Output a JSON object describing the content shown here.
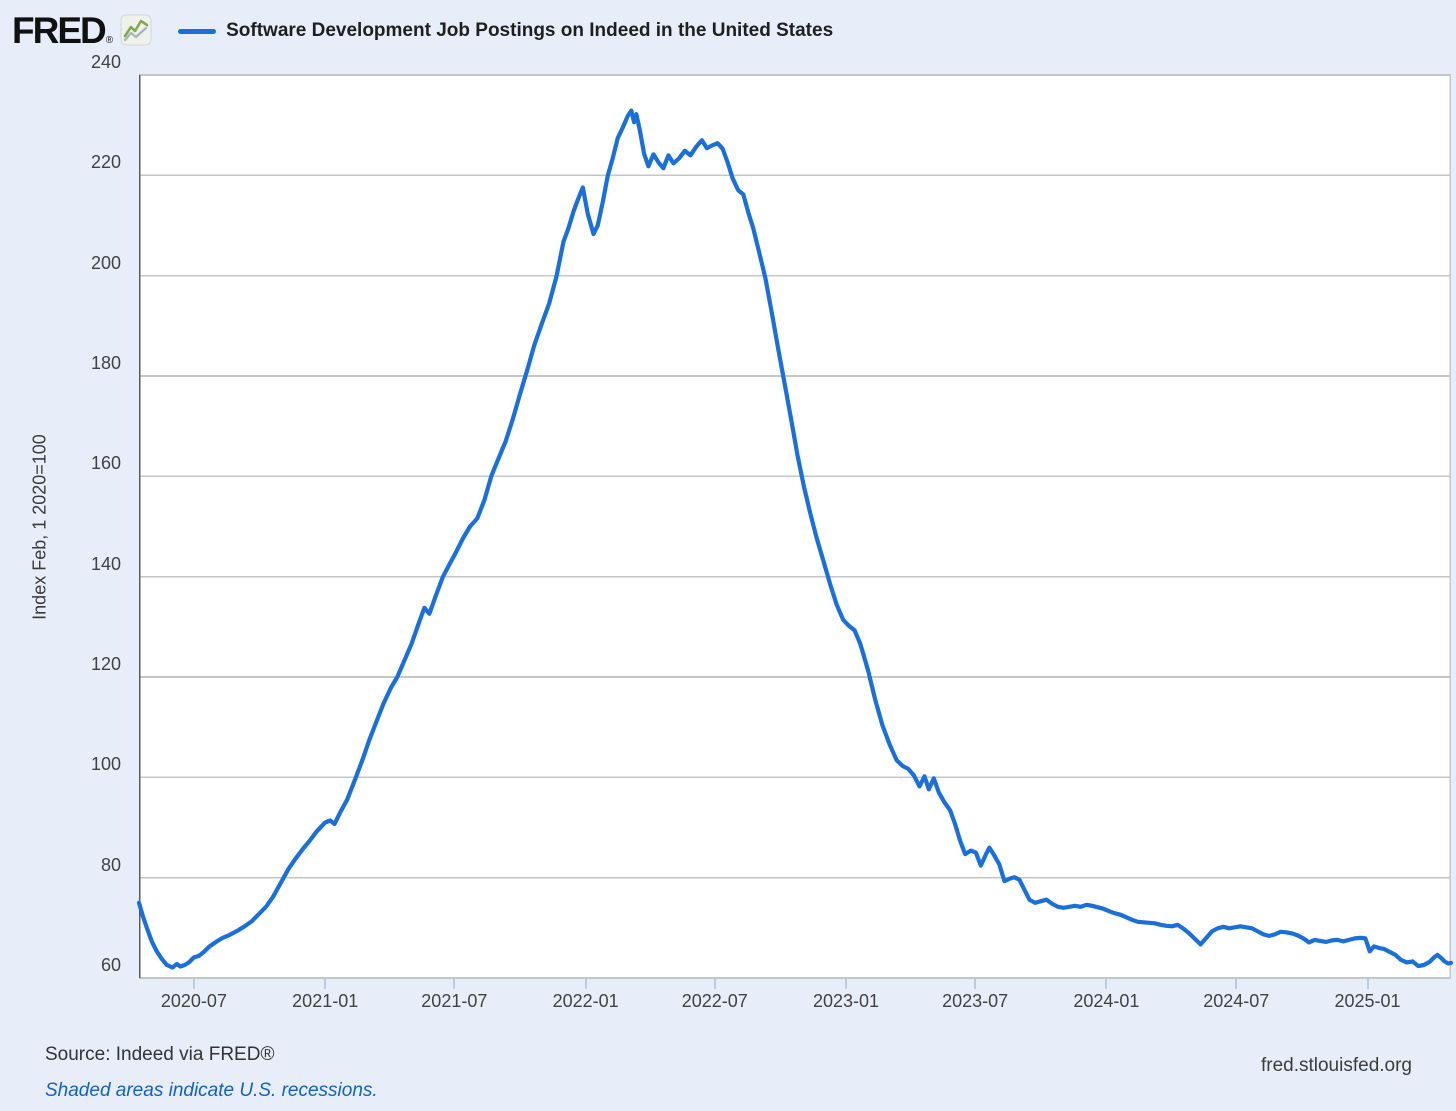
{
  "header": {
    "logo_text": "FRED",
    "registered_mark": "®",
    "legend_label": "Software Development Job Postings on Indeed in the United States"
  },
  "y_axis": {
    "label": "Index Feb, 1 2020=100"
  },
  "footer": {
    "source": "Source: Indeed via FRED®",
    "recession_note": "Shaded areas indicate U.S. recessions.",
    "site": "fred.stlouisfed.org"
  },
  "colors": {
    "background": "#e7eefa",
    "plot_background": "#ffffff",
    "line": "#1a6fdb",
    "grid": "#c6c6c6",
    "axis": "#5a5a5a",
    "tick": "#bcc9e2",
    "link": "#1261c4",
    "text": "#333333"
  },
  "chart_data": {
    "type": "line",
    "title": "Software Development Job Postings on Indeed in the United States",
    "xlabel": "",
    "ylabel": "Index Feb, 1 2020=100",
    "ylim": [
      60,
      240
    ],
    "y_ticks": [
      240,
      220,
      200,
      180,
      160,
      140,
      120,
      100,
      80,
      60
    ],
    "x_domain": [
      "2020-04-15",
      "2025-04-28"
    ],
    "x_ticks": [
      {
        "label": "2020-07",
        "date": "2020-07-01"
      },
      {
        "label": "2021-01",
        "date": "2021-01-01"
      },
      {
        "label": "2021-07",
        "date": "2021-07-01"
      },
      {
        "label": "2022-01",
        "date": "2022-01-01"
      },
      {
        "label": "2022-07",
        "date": "2022-07-01"
      },
      {
        "label": "2023-01",
        "date": "2023-01-01"
      },
      {
        "label": "2023-07",
        "date": "2023-07-01"
      },
      {
        "label": "2024-01",
        "date": "2024-01-01"
      },
      {
        "label": "2024-07",
        "date": "2024-07-01"
      },
      {
        "label": "2025-01",
        "date": "2025-01-01"
      }
    ],
    "grid": true,
    "legend_position": "top-left",
    "series": [
      {
        "name": "Software Development Job Postings on Indeed in the United States",
        "points": [
          [
            "2020-04-15",
            75.0
          ],
          [
            "2020-04-20",
            72.5
          ],
          [
            "2020-04-26",
            70.0
          ],
          [
            "2020-05-03",
            67.3
          ],
          [
            "2020-05-10",
            65.3
          ],
          [
            "2020-05-17",
            63.8
          ],
          [
            "2020-05-24",
            62.6
          ],
          [
            "2020-06-01",
            62.1
          ],
          [
            "2020-06-07",
            62.8
          ],
          [
            "2020-06-12",
            62.3
          ],
          [
            "2020-06-18",
            62.6
          ],
          [
            "2020-06-24",
            63.1
          ],
          [
            "2020-07-01",
            64.1
          ],
          [
            "2020-07-08",
            64.4
          ],
          [
            "2020-07-15",
            65.2
          ],
          [
            "2020-07-22",
            66.2
          ],
          [
            "2020-08-01",
            67.2
          ],
          [
            "2020-08-10",
            68.0
          ],
          [
            "2020-08-20",
            68.6
          ],
          [
            "2020-09-01",
            69.5
          ],
          [
            "2020-09-10",
            70.3
          ],
          [
            "2020-09-20",
            71.3
          ],
          [
            "2020-10-01",
            72.9
          ],
          [
            "2020-10-10",
            74.2
          ],
          [
            "2020-10-20",
            76.2
          ],
          [
            "2020-11-01",
            79.3
          ],
          [
            "2020-11-10",
            81.6
          ],
          [
            "2020-11-20",
            83.7
          ],
          [
            "2020-12-01",
            85.8
          ],
          [
            "2020-12-10",
            87.3
          ],
          [
            "2020-12-20",
            89.2
          ],
          [
            "2021-01-01",
            91.0
          ],
          [
            "2021-01-08",
            91.4
          ],
          [
            "2021-01-14",
            90.7
          ],
          [
            "2021-01-22",
            93.0
          ],
          [
            "2021-02-01",
            95.6
          ],
          [
            "2021-02-13",
            100.0
          ],
          [
            "2021-02-22",
            103.4
          ],
          [
            "2021-03-04",
            107.5
          ],
          [
            "2021-03-14",
            111.2
          ],
          [
            "2021-03-24",
            114.8
          ],
          [
            "2021-04-03",
            117.8
          ],
          [
            "2021-04-12",
            120.0
          ],
          [
            "2021-04-22",
            123.3
          ],
          [
            "2021-05-02",
            126.6
          ],
          [
            "2021-05-12",
            130.7
          ],
          [
            "2021-05-20",
            133.8
          ],
          [
            "2021-05-27",
            132.6
          ],
          [
            "2021-06-05",
            136.2
          ],
          [
            "2021-06-15",
            140.0
          ],
          [
            "2021-06-24",
            142.4
          ],
          [
            "2021-07-03",
            144.8
          ],
          [
            "2021-07-13",
            147.6
          ],
          [
            "2021-07-23",
            150.0
          ],
          [
            "2021-08-02",
            151.6
          ],
          [
            "2021-08-12",
            155.2
          ],
          [
            "2021-08-22",
            160.1
          ],
          [
            "2021-09-01",
            163.6
          ],
          [
            "2021-09-11",
            167.0
          ],
          [
            "2021-09-21",
            171.4
          ],
          [
            "2021-10-01",
            176.4
          ],
          [
            "2021-10-11",
            181.1
          ],
          [
            "2021-10-21",
            186.1
          ],
          [
            "2021-11-01",
            190.6
          ],
          [
            "2021-11-11",
            194.5
          ],
          [
            "2021-11-21",
            199.8
          ],
          [
            "2021-12-01",
            206.8
          ],
          [
            "2021-12-08",
            209.5
          ],
          [
            "2021-12-15",
            212.8
          ],
          [
            "2021-12-21",
            215.1
          ],
          [
            "2021-12-28",
            217.6
          ],
          [
            "2022-01-04",
            212.4
          ],
          [
            "2022-01-12",
            208.3
          ],
          [
            "2022-01-18",
            210.0
          ],
          [
            "2022-01-25",
            214.6
          ],
          [
            "2022-02-01",
            219.9
          ],
          [
            "2022-02-08",
            223.4
          ],
          [
            "2022-02-15",
            227.4
          ],
          [
            "2022-02-22",
            229.5
          ],
          [
            "2022-03-01",
            231.8
          ],
          [
            "2022-03-06",
            232.9
          ],
          [
            "2022-03-10",
            230.6
          ],
          [
            "2022-03-13",
            232.2
          ],
          [
            "2022-03-18",
            229.0
          ],
          [
            "2022-03-24",
            224.3
          ],
          [
            "2022-03-30",
            221.8
          ],
          [
            "2022-04-06",
            224.2
          ],
          [
            "2022-04-13",
            222.6
          ],
          [
            "2022-04-20",
            221.4
          ],
          [
            "2022-04-27",
            224.0
          ],
          [
            "2022-05-04",
            222.4
          ],
          [
            "2022-05-12",
            223.4
          ],
          [
            "2022-05-20",
            224.9
          ],
          [
            "2022-05-28",
            224.0
          ],
          [
            "2022-06-05",
            225.7
          ],
          [
            "2022-06-13",
            227.0
          ],
          [
            "2022-06-20",
            225.4
          ],
          [
            "2022-06-28",
            226.0
          ],
          [
            "2022-07-05",
            226.4
          ],
          [
            "2022-07-12",
            225.3
          ],
          [
            "2022-07-19",
            222.6
          ],
          [
            "2022-07-26",
            219.4
          ],
          [
            "2022-08-03",
            217.0
          ],
          [
            "2022-08-10",
            216.2
          ],
          [
            "2022-08-17",
            212.6
          ],
          [
            "2022-08-24",
            209.4
          ],
          [
            "2022-09-01",
            204.8
          ],
          [
            "2022-09-10",
            199.5
          ],
          [
            "2022-09-19",
            192.6
          ],
          [
            "2022-09-28",
            185.4
          ],
          [
            "2022-10-07",
            178.4
          ],
          [
            "2022-10-16",
            171.4
          ],
          [
            "2022-10-25",
            164.2
          ],
          [
            "2022-11-03",
            158.0
          ],
          [
            "2022-11-12",
            152.6
          ],
          [
            "2022-11-21",
            147.6
          ],
          [
            "2022-12-01",
            142.8
          ],
          [
            "2022-12-10",
            138.4
          ],
          [
            "2022-12-19",
            134.4
          ],
          [
            "2022-12-28",
            131.4
          ],
          [
            "2023-01-05",
            130.2
          ],
          [
            "2023-01-13",
            129.3
          ],
          [
            "2023-01-21",
            126.6
          ],
          [
            "2023-02-01",
            121.3
          ],
          [
            "2023-02-11",
            115.4
          ],
          [
            "2023-02-21",
            110.4
          ],
          [
            "2023-03-03",
            106.6
          ],
          [
            "2023-03-13",
            103.4
          ],
          [
            "2023-03-21",
            102.3
          ],
          [
            "2023-03-29",
            101.7
          ],
          [
            "2023-04-06",
            100.4
          ],
          [
            "2023-04-14",
            98.2
          ],
          [
            "2023-04-21",
            100.2
          ],
          [
            "2023-04-27",
            97.6
          ],
          [
            "2023-05-04",
            99.8
          ],
          [
            "2023-05-11",
            97.0
          ],
          [
            "2023-05-19",
            95.0
          ],
          [
            "2023-05-27",
            93.4
          ],
          [
            "2023-06-03",
            90.6
          ],
          [
            "2023-06-10",
            87.3
          ],
          [
            "2023-06-17",
            84.7
          ],
          [
            "2023-06-25",
            85.4
          ],
          [
            "2023-07-02",
            85.0
          ],
          [
            "2023-07-09",
            82.4
          ],
          [
            "2023-07-16",
            84.6
          ],
          [
            "2023-07-21",
            86.0
          ],
          [
            "2023-07-28",
            84.4
          ],
          [
            "2023-08-04",
            82.6
          ],
          [
            "2023-08-11",
            79.3
          ],
          [
            "2023-08-18",
            79.8
          ],
          [
            "2023-08-25",
            80.1
          ],
          [
            "2023-09-01",
            79.6
          ],
          [
            "2023-09-08",
            77.6
          ],
          [
            "2023-09-15",
            75.6
          ],
          [
            "2023-09-23",
            75.0
          ],
          [
            "2023-10-01",
            75.3
          ],
          [
            "2023-10-09",
            75.6
          ],
          [
            "2023-10-17",
            74.8
          ],
          [
            "2023-10-25",
            74.2
          ],
          [
            "2023-11-02",
            74.0
          ],
          [
            "2023-11-10",
            74.2
          ],
          [
            "2023-11-18",
            74.4
          ],
          [
            "2023-11-26",
            74.2
          ],
          [
            "2023-12-04",
            74.6
          ],
          [
            "2023-12-12",
            74.4
          ],
          [
            "2023-12-20",
            74.1
          ],
          [
            "2023-12-28",
            73.8
          ],
          [
            "2024-01-05",
            73.3
          ],
          [
            "2024-01-13",
            72.9
          ],
          [
            "2024-01-21",
            72.6
          ],
          [
            "2024-01-29",
            72.1
          ],
          [
            "2024-02-06",
            71.6
          ],
          [
            "2024-02-14",
            71.2
          ],
          [
            "2024-02-22",
            71.1
          ],
          [
            "2024-03-01",
            71.0
          ],
          [
            "2024-03-09",
            70.9
          ],
          [
            "2024-03-17",
            70.6
          ],
          [
            "2024-03-25",
            70.4
          ],
          [
            "2024-04-02",
            70.3
          ],
          [
            "2024-04-10",
            70.6
          ],
          [
            "2024-04-18",
            69.8
          ],
          [
            "2024-04-26",
            68.9
          ],
          [
            "2024-05-04",
            67.8
          ],
          [
            "2024-05-12",
            66.7
          ],
          [
            "2024-05-20",
            68.0
          ],
          [
            "2024-05-28",
            69.3
          ],
          [
            "2024-06-05",
            69.9
          ],
          [
            "2024-06-13",
            70.2
          ],
          [
            "2024-06-21",
            69.9
          ],
          [
            "2024-06-29",
            70.1
          ],
          [
            "2024-07-07",
            70.3
          ],
          [
            "2024-07-15",
            70.1
          ],
          [
            "2024-07-23",
            69.9
          ],
          [
            "2024-07-31",
            69.3
          ],
          [
            "2024-08-08",
            68.7
          ],
          [
            "2024-08-16",
            68.4
          ],
          [
            "2024-08-24",
            68.7
          ],
          [
            "2024-09-01",
            69.2
          ],
          [
            "2024-09-09",
            69.1
          ],
          [
            "2024-09-17",
            68.9
          ],
          [
            "2024-09-25",
            68.5
          ],
          [
            "2024-10-03",
            67.9
          ],
          [
            "2024-10-11",
            67.1
          ],
          [
            "2024-10-19",
            67.6
          ],
          [
            "2024-10-27",
            67.4
          ],
          [
            "2024-11-04",
            67.2
          ],
          [
            "2024-11-12",
            67.5
          ],
          [
            "2024-11-20",
            67.6
          ],
          [
            "2024-11-28",
            67.3
          ],
          [
            "2024-12-06",
            67.6
          ],
          [
            "2024-12-14",
            67.9
          ],
          [
            "2024-12-22",
            68.0
          ],
          [
            "2024-12-29",
            67.9
          ],
          [
            "2025-01-04",
            65.3
          ],
          [
            "2025-01-10",
            66.3
          ],
          [
            "2025-01-17",
            66.0
          ],
          [
            "2025-01-24",
            65.8
          ],
          [
            "2025-02-01",
            65.2
          ],
          [
            "2025-02-09",
            64.6
          ],
          [
            "2025-02-17",
            63.6
          ],
          [
            "2025-02-25",
            63.1
          ],
          [
            "2025-03-05",
            63.3
          ],
          [
            "2025-03-13",
            62.4
          ],
          [
            "2025-03-21",
            62.6
          ],
          [
            "2025-03-29",
            63.2
          ],
          [
            "2025-04-05",
            64.2
          ],
          [
            "2025-04-09",
            64.6
          ],
          [
            "2025-04-14",
            64.0
          ],
          [
            "2025-04-19",
            63.3
          ],
          [
            "2025-04-24",
            62.9
          ],
          [
            "2025-04-28",
            63.0
          ]
        ]
      }
    ]
  }
}
